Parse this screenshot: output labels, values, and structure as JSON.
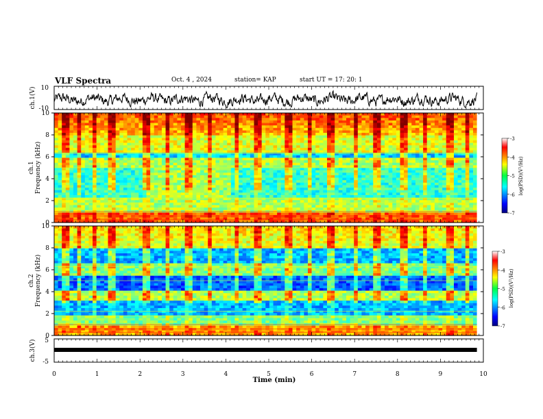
{
  "header": {
    "title": "VLF Spectra",
    "date": "Oct. 4 , 2024",
    "station": "station= KAP",
    "start": "start  UT =   17: 20: 1"
  },
  "chart_data": [
    {
      "type": "line",
      "name": "ch1-waveform",
      "ylabel": "ch.1(V)",
      "ylim": [
        -10,
        10
      ],
      "ytick_labels": [
        "10",
        "-10"
      ],
      "xlim": [
        0,
        10
      ],
      "approx_range_v": [
        -8,
        6
      ],
      "data_end_min": 9.85
    },
    {
      "type": "heatmap",
      "name": "ch1-spectrogram",
      "ylabel": "ch.1\nFrequency (kHz)",
      "ylim": [
        0,
        10
      ],
      "yticks": [
        0,
        2,
        4,
        6,
        8,
        10
      ],
      "xlim": [
        0,
        10
      ],
      "data_end_min": 9.85,
      "colorbar": {
        "label": "log(PSD)(V²/Hz)",
        "range": [
          -7,
          -3
        ],
        "ticks": [
          -7,
          -6,
          -5,
          -4,
          -3
        ]
      }
    },
    {
      "type": "heatmap",
      "name": "ch2-spectrogram",
      "ylabel": "ch.2\nFrequency (kHz)",
      "ylim": [
        0,
        10
      ],
      "yticks": [
        0,
        2,
        4,
        6,
        8,
        10
      ],
      "xlim": [
        0,
        10
      ],
      "data_end_min": 9.85,
      "colorbar": {
        "label": "log(PSD)(V²/Hz)",
        "range": [
          -7,
          -3
        ],
        "ticks": [
          -7,
          -6,
          -5,
          -4,
          -3
        ]
      }
    },
    {
      "type": "line",
      "name": "ch3-signal",
      "ylabel": "ch.3(V)",
      "ylim": [
        -5,
        5
      ],
      "ytick_labels": [
        "5",
        "-5"
      ],
      "xlim": [
        0,
        10
      ],
      "approx_value_v": 0,
      "data_end_min": 9.85
    }
  ],
  "xaxis": {
    "label": "Time (min)",
    "ticks": [
      "0",
      "1",
      "2",
      "3",
      "4",
      "5",
      "6",
      "7",
      "8",
      "9",
      "10"
    ]
  },
  "colorbar_labels": [
    "-3",
    "-4",
    "-5",
    "-6",
    "-7"
  ]
}
